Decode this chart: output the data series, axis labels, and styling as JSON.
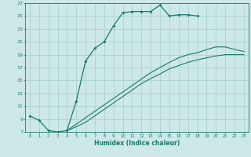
{
  "xlabel": "Humidex (Indice chaleur)",
  "bg_color": "#cce8e8",
  "line_color": "#1a7a6a",
  "grid_color": "#a8cccc",
  "xlim_min": -0.5,
  "xlim_max": 23.5,
  "ylim_min": 7,
  "ylim_max": 27,
  "xticks": [
    0,
    1,
    2,
    3,
    4,
    5,
    6,
    7,
    8,
    9,
    10,
    11,
    12,
    13,
    14,
    15,
    16,
    17,
    18,
    19,
    20,
    21,
    22,
    23
  ],
  "yticks": [
    7,
    9,
    11,
    13,
    15,
    17,
    19,
    21,
    23,
    25,
    27
  ],
  "c1x": [
    0,
    1,
    2,
    3,
    4,
    5,
    6,
    7,
    8,
    9,
    10,
    11,
    12,
    13,
    14,
    15,
    16,
    17,
    18
  ],
  "c1y": [
    9.5,
    8.8,
    7.2,
    7.0,
    7.2,
    11.8,
    18.0,
    20.0,
    21.0,
    23.5,
    25.5,
    25.7,
    25.7,
    25.7,
    26.7,
    25.0,
    25.2,
    25.2,
    25.0
  ],
  "c2x": [
    4,
    5,
    6,
    7,
    8,
    9,
    10,
    11,
    12,
    13,
    14,
    15,
    16,
    17,
    18,
    19,
    20,
    21,
    22,
    23
  ],
  "c2y": [
    7.2,
    7.8,
    8.5,
    9.5,
    10.5,
    11.5,
    12.5,
    13.5,
    14.5,
    15.3,
    16.0,
    16.8,
    17.3,
    17.8,
    18.2,
    18.5,
    18.8,
    19.0,
    19.0,
    19.0
  ],
  "c3x": [
    4,
    5,
    6,
    7,
    8,
    9,
    10,
    11,
    12,
    13,
    14,
    15,
    16,
    17,
    18,
    19,
    20,
    21,
    22,
    23
  ],
  "c3y": [
    7.2,
    8.2,
    9.2,
    10.2,
    11.2,
    12.2,
    13.2,
    14.2,
    15.2,
    16.2,
    17.0,
    17.8,
    18.5,
    19.0,
    19.3,
    19.8,
    20.2,
    20.2,
    19.8,
    19.5
  ]
}
